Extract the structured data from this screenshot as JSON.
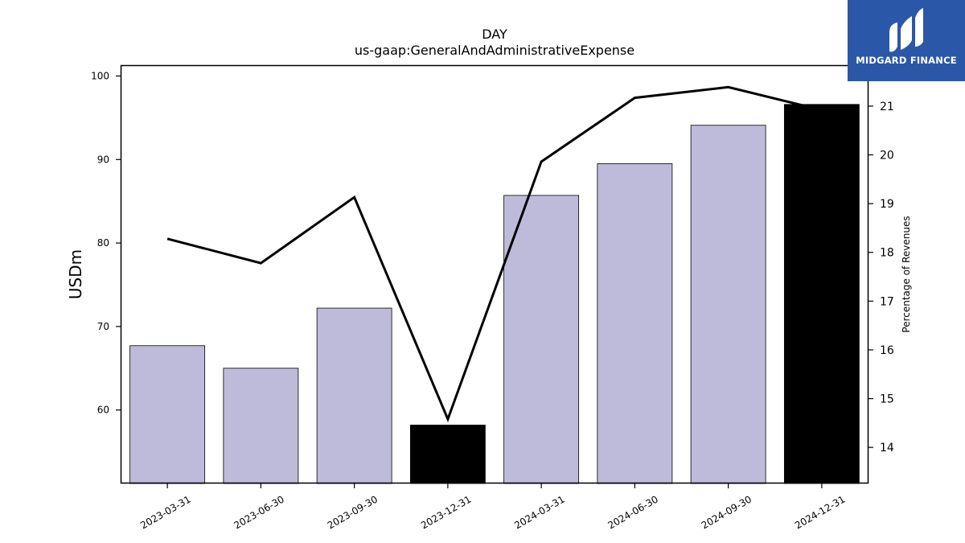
{
  "brand": {
    "name": "MIDGARD FINANCE",
    "bg_color": "#2b57a8"
  },
  "chart_data": {
    "type": "bar",
    "title": "DAY",
    "subtitle": "us-gaap:GeneralAndAdministrativeExpense",
    "categories": [
      "2023-03-31",
      "2023-06-30",
      "2023-09-30",
      "2023-12-31",
      "2024-03-31",
      "2024-06-30",
      "2024-09-30",
      "2024-12-31"
    ],
    "series": [
      {
        "type": "bar",
        "axis": "left",
        "values": [
          67.7,
          65.0,
          72.2,
          58.2,
          85.7,
          89.5,
          94.1,
          96.6
        ],
        "colors": [
          "#bebbda",
          "#bebbda",
          "#bebbda",
          "#000000",
          "#bebbda",
          "#bebbda",
          "#bebbda",
          "#000000"
        ]
      },
      {
        "type": "line",
        "axis": "right",
        "values": [
          18.28,
          17.78,
          19.13,
          14.58,
          19.86,
          21.17,
          21.39,
          20.92
        ],
        "color": "#000000"
      }
    ],
    "ylabel": "USDm",
    "y2label": "Percentage of Revenues",
    "ylim": [
      51.2,
      101.3
    ],
    "y2lim": [
      13.26,
      21.84
    ],
    "yticks": [
      60,
      70,
      80,
      90,
      100
    ],
    "y2ticks": [
      14,
      15,
      16,
      17,
      18,
      19,
      20,
      21
    ],
    "grid": false,
    "legend": "none"
  }
}
